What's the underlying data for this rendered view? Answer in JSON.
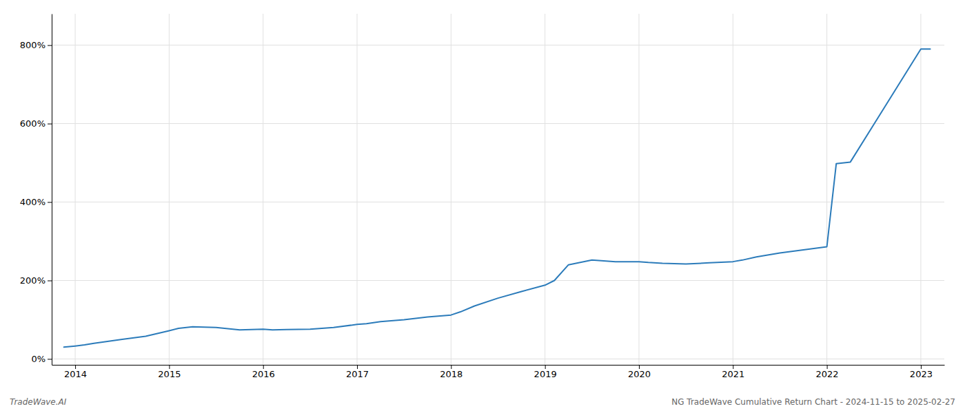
{
  "chart_data": {
    "type": "line",
    "annotations": [
      "TradeWave.AI",
      "NG TradeWave Cumulative Return Chart - 2024-11-15 to 2025-02-27"
    ],
    "color": "#2b7bba",
    "x": [
      2013.88,
      2014.0,
      2014.1,
      2014.2,
      2014.5,
      2014.75,
      2015.0,
      2015.1,
      2015.25,
      2015.5,
      2015.75,
      2016.0,
      2016.1,
      2016.25,
      2016.5,
      2016.75,
      2017.0,
      2017.1,
      2017.25,
      2017.5,
      2017.75,
      2018.0,
      2018.1,
      2018.25,
      2018.5,
      2018.75,
      2019.0,
      2019.1,
      2019.25,
      2019.5,
      2019.75,
      2020.0,
      2020.1,
      2020.25,
      2020.5,
      2020.75,
      2021.0,
      2021.1,
      2021.25,
      2021.5,
      2021.75,
      2022.0,
      2022.1,
      2022.25,
      2023.0,
      2023.1
    ],
    "values": [
      30,
      33,
      36,
      40,
      50,
      58,
      72,
      78,
      82,
      80,
      74,
      76,
      74,
      75,
      76,
      80,
      88,
      90,
      95,
      100,
      107,
      112,
      120,
      135,
      155,
      172,
      188,
      200,
      240,
      252,
      248,
      248,
      246,
      244,
      242,
      245,
      248,
      252,
      260,
      270,
      278,
      286,
      498,
      502,
      790,
      790
    ],
    "xlim": [
      2013.75,
      2023.25
    ],
    "ylim": [
      -15,
      880
    ],
    "xticks": [
      2014,
      2015,
      2016,
      2017,
      2018,
      2019,
      2020,
      2021,
      2022,
      2023
    ],
    "yticks": [
      {
        "value": 0,
        "label": "0%"
      },
      {
        "value": 200,
        "label": "200%"
      },
      {
        "value": 400,
        "label": "400%"
      },
      {
        "value": 600,
        "label": "600%"
      },
      {
        "value": 800,
        "label": "800%"
      }
    ],
    "grid": true
  }
}
